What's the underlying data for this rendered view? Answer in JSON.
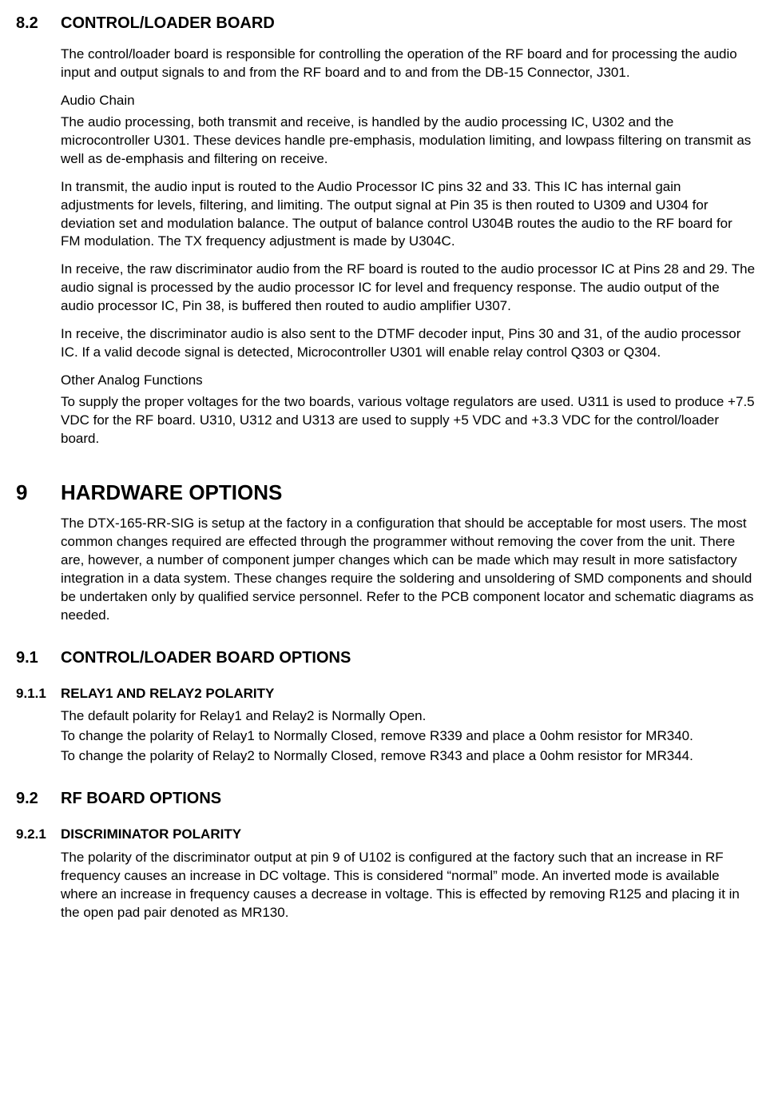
{
  "s82": {
    "num": "8.2",
    "title": "CONTROL/LOADER BOARD",
    "p1": "The control/loader board is responsible for controlling the operation of the RF board and for processing the audio input and output signals to and from the RF board and to and from the DB-15 Connector, J301.",
    "sub1_title": "Audio Chain",
    "sub1_p1": "The audio processing, both transmit and receive, is handled by the audio processing IC, U302 and the microcontroller U301.  These devices handle pre-emphasis, modulation limiting, and lowpass filtering on transmit as well as de-emphasis and filtering on receive.",
    "sub1_p2": "In transmit, the audio input is routed to the Audio Processor IC pins 32 and 33. This IC has internal gain adjustments for levels, filtering, and limiting. The output signal at Pin 35 is then routed to U309 and U304 for deviation set and modulation balance.  The output of balance control U304B routes the audio to the RF board for FM modulation.  The TX frequency adjustment is made by U304C.",
    "sub1_p3": "In receive, the raw discriminator audio from the RF board is routed to the audio processor IC at Pins 28 and 29. The audio signal is processed by the audio processor IC for level and frequency response. The audio output of the audio processor IC, Pin 38, is buffered then routed to audio amplifier U307.",
    "sub1_p4": "In receive, the discriminator audio is also sent to the DTMF decoder input, Pins 30 and 31, of the audio processor IC. If a valid decode signal is detected, Microcontroller U301 will enable relay control Q303 or Q304.",
    "sub2_title": "Other Analog Functions",
    "sub2_p1": "To supply the proper voltages for the two boards, various voltage regulators are used.  U311 is used to produce +7.5 VDC for the RF board.  U310, U312 and U313 are used to supply +5 VDC and +3.3 VDC for the control/loader board."
  },
  "s9": {
    "num": "9",
    "title": "HARDWARE OPTIONS",
    "p1": "The DTX-165-RR-SIG is setup at the factory in a configuration that should be acceptable for most users.  The most common changes required are effected through the programmer without removing the cover from the unit.  There are, however, a number of component jumper changes which can be made which may result in more satisfactory integration in a data system.  These changes require the soldering and unsoldering of SMD components and should be undertaken only by qualified service personnel.  Refer to the PCB component locator and schematic diagrams as needed."
  },
  "s91": {
    "num": "9.1",
    "title": "CONTROL/LOADER BOARD OPTIONS"
  },
  "s911": {
    "num": "9.1.1",
    "title": "RELAY1 AND RELAY2 POLARITY",
    "l1": "The default polarity for Relay1 and Relay2 is Normally Open.",
    "l2": "To change the polarity of Relay1 to Normally Closed, remove R339 and place a 0ohm resistor for MR340.",
    "l3": "To change the polarity of Relay2 to Normally Closed, remove R343 and place a 0ohm resistor for MR344."
  },
  "s92": {
    "num": "9.2",
    "title": "RF BOARD OPTIONS"
  },
  "s921": {
    "num": "9.2.1",
    "title": "DISCRIMINATOR POLARITY",
    "p1": "The polarity of the discriminator output at pin 9 of U102 is configured at the factory such that an increase in RF frequency causes an increase in DC voltage.  This is considered “normal” mode.  An inverted mode is available where an increase in frequency causes a decrease in voltage.  This is effected by removing R125 and placing it in the open pad pair denoted as MR130."
  }
}
